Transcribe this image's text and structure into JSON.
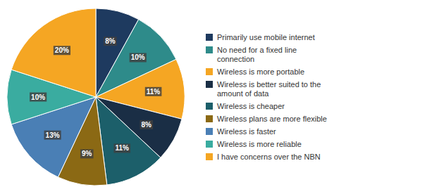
{
  "chart_data": {
    "type": "pie",
    "categories": [
      "Primarily use mobile internet",
      "No need for a fixed line\nconnection",
      "Wireless is more portable",
      "Wireless is better suited to the\namount of data",
      "Wireless is cheaper",
      "Wireless plans are more flexible",
      "Wireless is faster",
      "Wireless is more reliable",
      "I have concerns over the NBN"
    ],
    "values": [
      8,
      10,
      11,
      8,
      11,
      9,
      13,
      10,
      20
    ],
    "value_labels": [
      "8%",
      "10%",
      "11%",
      "8%",
      "11%",
      "9%",
      "13%",
      "10%",
      "20%"
    ],
    "colors": [
      "#1E3A5F",
      "#2E8B8A",
      "#F5A623",
      "#1A2E45",
      "#1C5F6A",
      "#8B6914",
      "#4A7FB5",
      "#3AACA0",
      "#F5A623"
    ],
    "data_labels": true,
    "legend": "right"
  }
}
